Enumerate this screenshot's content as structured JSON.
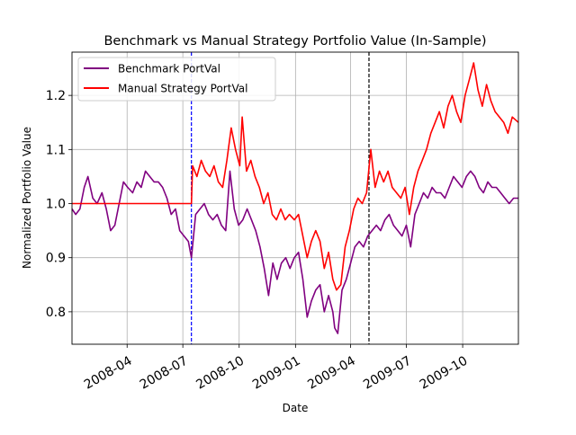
{
  "chart_data": {
    "type": "line",
    "title": "Benchmark vs Manual Strategy Portfolio Value (In-Sample)",
    "xlabel": "Date",
    "ylabel": "Normalized Portfolio Value",
    "xlim": [
      "2008-01-02",
      "2009-12-31"
    ],
    "ylim": [
      0.74,
      1.28
    ],
    "x_ticks": [
      "2008-04",
      "2008-07",
      "2008-10",
      "2009-01",
      "2009-04",
      "2009-07",
      "2009-10"
    ],
    "y_ticks": [
      "0.8",
      "0.9",
      "1.0",
      "1.1",
      "1.2"
    ],
    "grid": true,
    "legend_position": "upper-left",
    "vlines": [
      {
        "x": "2008-07-15",
        "color": "#0000ff",
        "style": "dashed"
      },
      {
        "x": "2009-05-01",
        "color": "#000000",
        "style": "dashed"
      }
    ],
    "series": [
      {
        "name": "Benchmark PortVal",
        "color": "#800080",
        "points": [
          [
            "2008-01-02",
            0.99
          ],
          [
            "2008-01-08",
            0.98
          ],
          [
            "2008-01-15",
            0.99
          ],
          [
            "2008-01-22",
            1.03
          ],
          [
            "2008-01-28",
            1.05
          ],
          [
            "2008-02-05",
            1.01
          ],
          [
            "2008-02-12",
            1.0
          ],
          [
            "2008-02-20",
            1.02
          ],
          [
            "2008-02-27",
            0.99
          ],
          [
            "2008-03-05",
            0.95
          ],
          [
            "2008-03-12",
            0.96
          ],
          [
            "2008-03-19",
            1.0
          ],
          [
            "2008-03-26",
            1.04
          ],
          [
            "2008-04-02",
            1.03
          ],
          [
            "2008-04-10",
            1.02
          ],
          [
            "2008-04-17",
            1.04
          ],
          [
            "2008-04-24",
            1.03
          ],
          [
            "2008-05-01",
            1.06
          ],
          [
            "2008-05-08",
            1.05
          ],
          [
            "2008-05-15",
            1.04
          ],
          [
            "2008-05-22",
            1.04
          ],
          [
            "2008-05-29",
            1.03
          ],
          [
            "2008-06-05",
            1.01
          ],
          [
            "2008-06-12",
            0.98
          ],
          [
            "2008-06-19",
            0.99
          ],
          [
            "2008-06-26",
            0.95
          ],
          [
            "2008-07-03",
            0.94
          ],
          [
            "2008-07-10",
            0.93
          ],
          [
            "2008-07-15",
            0.9
          ],
          [
            "2008-07-22",
            0.98
          ],
          [
            "2008-07-29",
            0.99
          ],
          [
            "2008-08-05",
            1.0
          ],
          [
            "2008-08-12",
            0.98
          ],
          [
            "2008-08-19",
            0.97
          ],
          [
            "2008-08-26",
            0.98
          ],
          [
            "2008-09-02",
            0.96
          ],
          [
            "2008-09-09",
            0.95
          ],
          [
            "2008-09-16",
            1.06
          ],
          [
            "2008-09-23",
            0.99
          ],
          [
            "2008-09-30",
            0.96
          ],
          [
            "2008-10-07",
            0.97
          ],
          [
            "2008-10-14",
            0.99
          ],
          [
            "2008-10-21",
            0.97
          ],
          [
            "2008-10-28",
            0.95
          ],
          [
            "2008-11-04",
            0.92
          ],
          [
            "2008-11-11",
            0.88
          ],
          [
            "2008-11-18",
            0.83
          ],
          [
            "2008-11-25",
            0.89
          ],
          [
            "2008-12-02",
            0.86
          ],
          [
            "2008-12-09",
            0.89
          ],
          [
            "2008-12-16",
            0.9
          ],
          [
            "2008-12-23",
            0.88
          ],
          [
            "2008-12-30",
            0.9
          ],
          [
            "2009-01-06",
            0.91
          ],
          [
            "2009-01-13",
            0.86
          ],
          [
            "2009-01-20",
            0.79
          ],
          [
            "2009-01-27",
            0.82
          ],
          [
            "2009-02-03",
            0.84
          ],
          [
            "2009-02-10",
            0.85
          ],
          [
            "2009-02-17",
            0.8
          ],
          [
            "2009-02-24",
            0.83
          ],
          [
            "2009-03-03",
            0.8
          ],
          [
            "2009-03-06",
            0.77
          ],
          [
            "2009-03-11",
            0.76
          ],
          [
            "2009-03-18",
            0.84
          ],
          [
            "2009-03-25",
            0.86
          ],
          [
            "2009-04-01",
            0.89
          ],
          [
            "2009-04-08",
            0.92
          ],
          [
            "2009-04-15",
            0.93
          ],
          [
            "2009-04-22",
            0.92
          ],
          [
            "2009-04-29",
            0.94
          ],
          [
            "2009-05-06",
            0.95
          ],
          [
            "2009-05-13",
            0.96
          ],
          [
            "2009-05-20",
            0.95
          ],
          [
            "2009-05-27",
            0.97
          ],
          [
            "2009-06-03",
            0.98
          ],
          [
            "2009-06-10",
            0.96
          ],
          [
            "2009-06-17",
            0.95
          ],
          [
            "2009-06-24",
            0.94
          ],
          [
            "2009-07-01",
            0.96
          ],
          [
            "2009-07-08",
            0.92
          ],
          [
            "2009-07-15",
            0.98
          ],
          [
            "2009-07-22",
            1.0
          ],
          [
            "2009-07-29",
            1.02
          ],
          [
            "2009-08-05",
            1.01
          ],
          [
            "2009-08-12",
            1.03
          ],
          [
            "2009-08-19",
            1.02
          ],
          [
            "2009-08-26",
            1.02
          ],
          [
            "2009-09-02",
            1.01
          ],
          [
            "2009-09-09",
            1.03
          ],
          [
            "2009-09-16",
            1.05
          ],
          [
            "2009-09-23",
            1.04
          ],
          [
            "2009-09-30",
            1.03
          ],
          [
            "2009-10-07",
            1.05
          ],
          [
            "2009-10-14",
            1.06
          ],
          [
            "2009-10-21",
            1.05
          ],
          [
            "2009-10-28",
            1.03
          ],
          [
            "2009-11-04",
            1.02
          ],
          [
            "2009-11-11",
            1.04
          ],
          [
            "2009-11-18",
            1.03
          ],
          [
            "2009-11-25",
            1.03
          ],
          [
            "2009-12-02",
            1.02
          ],
          [
            "2009-12-09",
            1.01
          ],
          [
            "2009-12-16",
            1.0
          ],
          [
            "2009-12-23",
            1.01
          ],
          [
            "2009-12-31",
            1.01
          ]
        ]
      },
      {
        "name": "Manual Strategy PortVal",
        "color": "#ff0000",
        "points": [
          [
            "2008-01-02",
            1.0
          ],
          [
            "2008-07-15",
            1.0
          ],
          [
            "2008-07-17",
            1.07
          ],
          [
            "2008-07-24",
            1.05
          ],
          [
            "2008-07-31",
            1.08
          ],
          [
            "2008-08-07",
            1.06
          ],
          [
            "2008-08-14",
            1.05
          ],
          [
            "2008-08-21",
            1.07
          ],
          [
            "2008-08-28",
            1.04
          ],
          [
            "2008-09-04",
            1.03
          ],
          [
            "2008-09-11",
            1.08
          ],
          [
            "2008-09-18",
            1.14
          ],
          [
            "2008-09-25",
            1.1
          ],
          [
            "2008-10-02",
            1.07
          ],
          [
            "2008-10-06",
            1.16
          ],
          [
            "2008-10-13",
            1.06
          ],
          [
            "2008-10-20",
            1.08
          ],
          [
            "2008-10-27",
            1.05
          ],
          [
            "2008-11-03",
            1.03
          ],
          [
            "2008-11-10",
            1.0
          ],
          [
            "2008-11-17",
            1.02
          ],
          [
            "2008-11-24",
            0.98
          ],
          [
            "2008-12-01",
            0.97
          ],
          [
            "2008-12-08",
            0.99
          ],
          [
            "2008-12-15",
            0.97
          ],
          [
            "2008-12-22",
            0.98
          ],
          [
            "2008-12-30",
            0.97
          ],
          [
            "2009-01-06",
            0.98
          ],
          [
            "2009-01-13",
            0.94
          ],
          [
            "2009-01-20",
            0.9
          ],
          [
            "2009-01-27",
            0.93
          ],
          [
            "2009-02-03",
            0.95
          ],
          [
            "2009-02-10",
            0.93
          ],
          [
            "2009-02-17",
            0.88
          ],
          [
            "2009-02-24",
            0.91
          ],
          [
            "2009-03-03",
            0.86
          ],
          [
            "2009-03-09",
            0.84
          ],
          [
            "2009-03-16",
            0.85
          ],
          [
            "2009-03-23",
            0.92
          ],
          [
            "2009-03-30",
            0.95
          ],
          [
            "2009-04-06",
            0.99
          ],
          [
            "2009-04-13",
            1.01
          ],
          [
            "2009-04-20",
            1.0
          ],
          [
            "2009-04-27",
            1.02
          ],
          [
            "2009-05-04",
            1.1
          ],
          [
            "2009-05-11",
            1.03
          ],
          [
            "2009-05-18",
            1.06
          ],
          [
            "2009-05-25",
            1.04
          ],
          [
            "2009-06-01",
            1.06
          ],
          [
            "2009-06-08",
            1.03
          ],
          [
            "2009-06-15",
            1.02
          ],
          [
            "2009-06-22",
            1.01
          ],
          [
            "2009-06-29",
            1.03
          ],
          [
            "2009-07-06",
            0.98
          ],
          [
            "2009-07-13",
            1.03
          ],
          [
            "2009-07-20",
            1.06
          ],
          [
            "2009-07-27",
            1.08
          ],
          [
            "2009-08-03",
            1.1
          ],
          [
            "2009-08-10",
            1.13
          ],
          [
            "2009-08-17",
            1.15
          ],
          [
            "2009-08-24",
            1.17
          ],
          [
            "2009-08-31",
            1.14
          ],
          [
            "2009-09-07",
            1.18
          ],
          [
            "2009-09-14",
            1.2
          ],
          [
            "2009-09-21",
            1.17
          ],
          [
            "2009-09-28",
            1.15
          ],
          [
            "2009-10-05",
            1.2
          ],
          [
            "2009-10-12",
            1.23
          ],
          [
            "2009-10-19",
            1.26
          ],
          [
            "2009-10-26",
            1.21
          ],
          [
            "2009-11-02",
            1.18
          ],
          [
            "2009-11-09",
            1.22
          ],
          [
            "2009-11-16",
            1.19
          ],
          [
            "2009-11-23",
            1.17
          ],
          [
            "2009-11-30",
            1.16
          ],
          [
            "2009-12-07",
            1.15
          ],
          [
            "2009-12-14",
            1.13
          ],
          [
            "2009-12-21",
            1.16
          ],
          [
            "2009-12-31",
            1.15
          ]
        ]
      }
    ]
  }
}
